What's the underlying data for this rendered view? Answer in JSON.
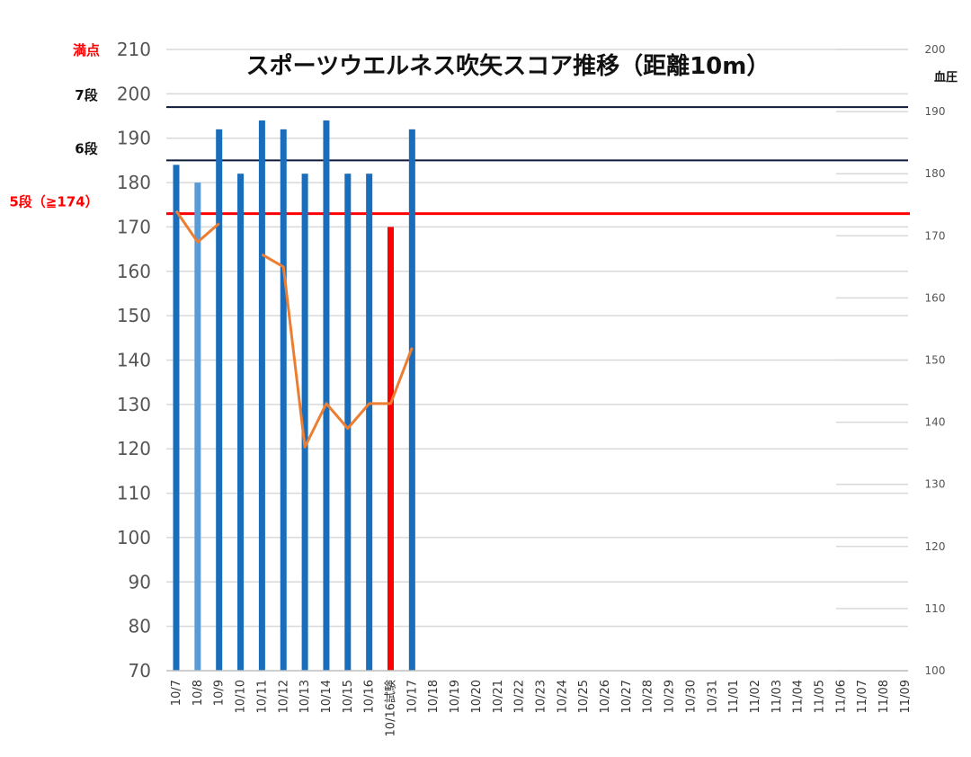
{
  "chart_data": {
    "type": "bar",
    "title": "スポーツウエルネス吹矢スコア推移（距離10m）",
    "categories": [
      "10/7",
      "10/8",
      "10/9",
      "10/10",
      "10/11",
      "10/12",
      "10/13",
      "10/14",
      "10/15",
      "10/16",
      "10/16試験",
      "10/17",
      "10/18",
      "10/19",
      "10/20",
      "10/21",
      "10/22",
      "10/23",
      "10/24",
      "10/25",
      "10/26",
      "10/27",
      "10/28",
      "10/29",
      "10/30",
      "10/31",
      "11/01",
      "11/02",
      "11/03",
      "11/04",
      "11/05",
      "11/06",
      "11/07",
      "11/08",
      "11/09"
    ],
    "series": [
      {
        "type": "bar",
        "axis": "left",
        "values": [
          184,
          180,
          192,
          182,
          194,
          192,
          182,
          194,
          182,
          182,
          170,
          192,
          null,
          null,
          null,
          null,
          null,
          null,
          null,
          null,
          null,
          null,
          null,
          null,
          null,
          null,
          null,
          null,
          null,
          null,
          null,
          null,
          null,
          null,
          null
        ],
        "colors": [
          "#1a6dbb",
          "#5b9bd5",
          "#1a6dbb",
          "#1a6dbb",
          "#1a6dbb",
          "#1a6dbb",
          "#1a6dbb",
          "#1a6dbb",
          "#1a6dbb",
          "#1a6dbb",
          "#ff0000",
          "#1a6dbb"
        ]
      },
      {
        "type": "line",
        "axis": "right",
        "color": "#ed7d31",
        "values": [
          174,
          169,
          172,
          null,
          167,
          165,
          136,
          143,
          139,
          143,
          143,
          152,
          null,
          null,
          null,
          null,
          null,
          null,
          null,
          null,
          null,
          null,
          null,
          null,
          null,
          null,
          null,
          null,
          null,
          null,
          null,
          null,
          null,
          null,
          null
        ]
      }
    ],
    "ylim": [
      70,
      210
    ],
    "yticks": [
      70,
      80,
      90,
      100,
      110,
      120,
      130,
      140,
      150,
      160,
      170,
      180,
      190,
      200,
      210
    ],
    "y2label": "血圧",
    "y2lim": [
      100,
      200
    ],
    "y2ticks": [
      100,
      110,
      120,
      130,
      140,
      150,
      160,
      170,
      180,
      190,
      200
    ],
    "reference_lines": [
      {
        "value": 210,
        "label": "満点",
        "color": "#b0b0b0",
        "label_color": "#ff0000"
      },
      {
        "value": 197,
        "label": "7段",
        "color": "#0d1a3a",
        "label_color": "#111111"
      },
      {
        "value": 185,
        "label": "6段",
        "color": "#0d1a3a",
        "label_color": "#111111"
      },
      {
        "value": 173,
        "label": "5段（≧174）",
        "color": "#ff0000",
        "label_color": "#ff0000"
      }
    ],
    "grid": true
  }
}
